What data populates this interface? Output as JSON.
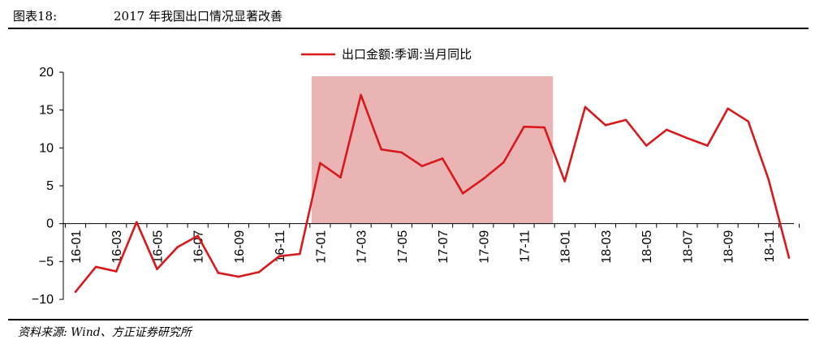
{
  "figure": {
    "label": "图表18:",
    "title": "2017 年我国出口情况显著改善",
    "source": "资料来源: Wind、方正证券研究所"
  },
  "chart_data": {
    "type": "line",
    "title": "",
    "xlabel": "",
    "ylabel": "",
    "ylim": [
      -10,
      20
    ],
    "yticks": [
      -10,
      -5,
      0,
      5,
      10,
      15,
      20
    ],
    "grid": false,
    "legend_position": "top-center",
    "x": [
      "16-01",
      "16-02",
      "16-03",
      "16-04",
      "16-05",
      "16-06",
      "16-07",
      "16-08",
      "16-09",
      "16-10",
      "16-11",
      "16-12",
      "17-01",
      "17-02",
      "17-03",
      "17-04",
      "17-05",
      "17-06",
      "17-07",
      "17-08",
      "17-09",
      "17-10",
      "17-11",
      "17-12",
      "18-01",
      "18-02",
      "18-03",
      "18-04",
      "18-05",
      "18-06",
      "18-07",
      "18-08",
      "18-09",
      "18-10",
      "18-11",
      "18-12"
    ],
    "x_tick_labels": [
      "16-01",
      "16-03",
      "16-05",
      "16-07",
      "16-09",
      "16-11",
      "17-01",
      "17-03",
      "17-05",
      "17-07",
      "17-09",
      "17-11",
      "18-01",
      "18-03",
      "18-05",
      "18-07",
      "18-09",
      "18-11"
    ],
    "series": [
      {
        "name": "出口金额:季调:当月同比",
        "color": "#d7191c",
        "values": [
          -9.0,
          -5.7,
          -6.3,
          0.2,
          -6.0,
          -3.1,
          -1.6,
          -6.5,
          -7.0,
          -6.4,
          -4.3,
          -4.0,
          8.0,
          6.1,
          17.0,
          9.8,
          9.4,
          7.6,
          8.6,
          4.0,
          5.9,
          8.1,
          12.8,
          12.7,
          5.6,
          15.4,
          13.0,
          13.7,
          10.3,
          12.4,
          11.3,
          10.3,
          15.2,
          13.5,
          5.8,
          -4.5
        ]
      }
    ],
    "highlight": {
      "from": "17-01",
      "to": "17-12",
      "color": "#ebb4b4"
    }
  }
}
